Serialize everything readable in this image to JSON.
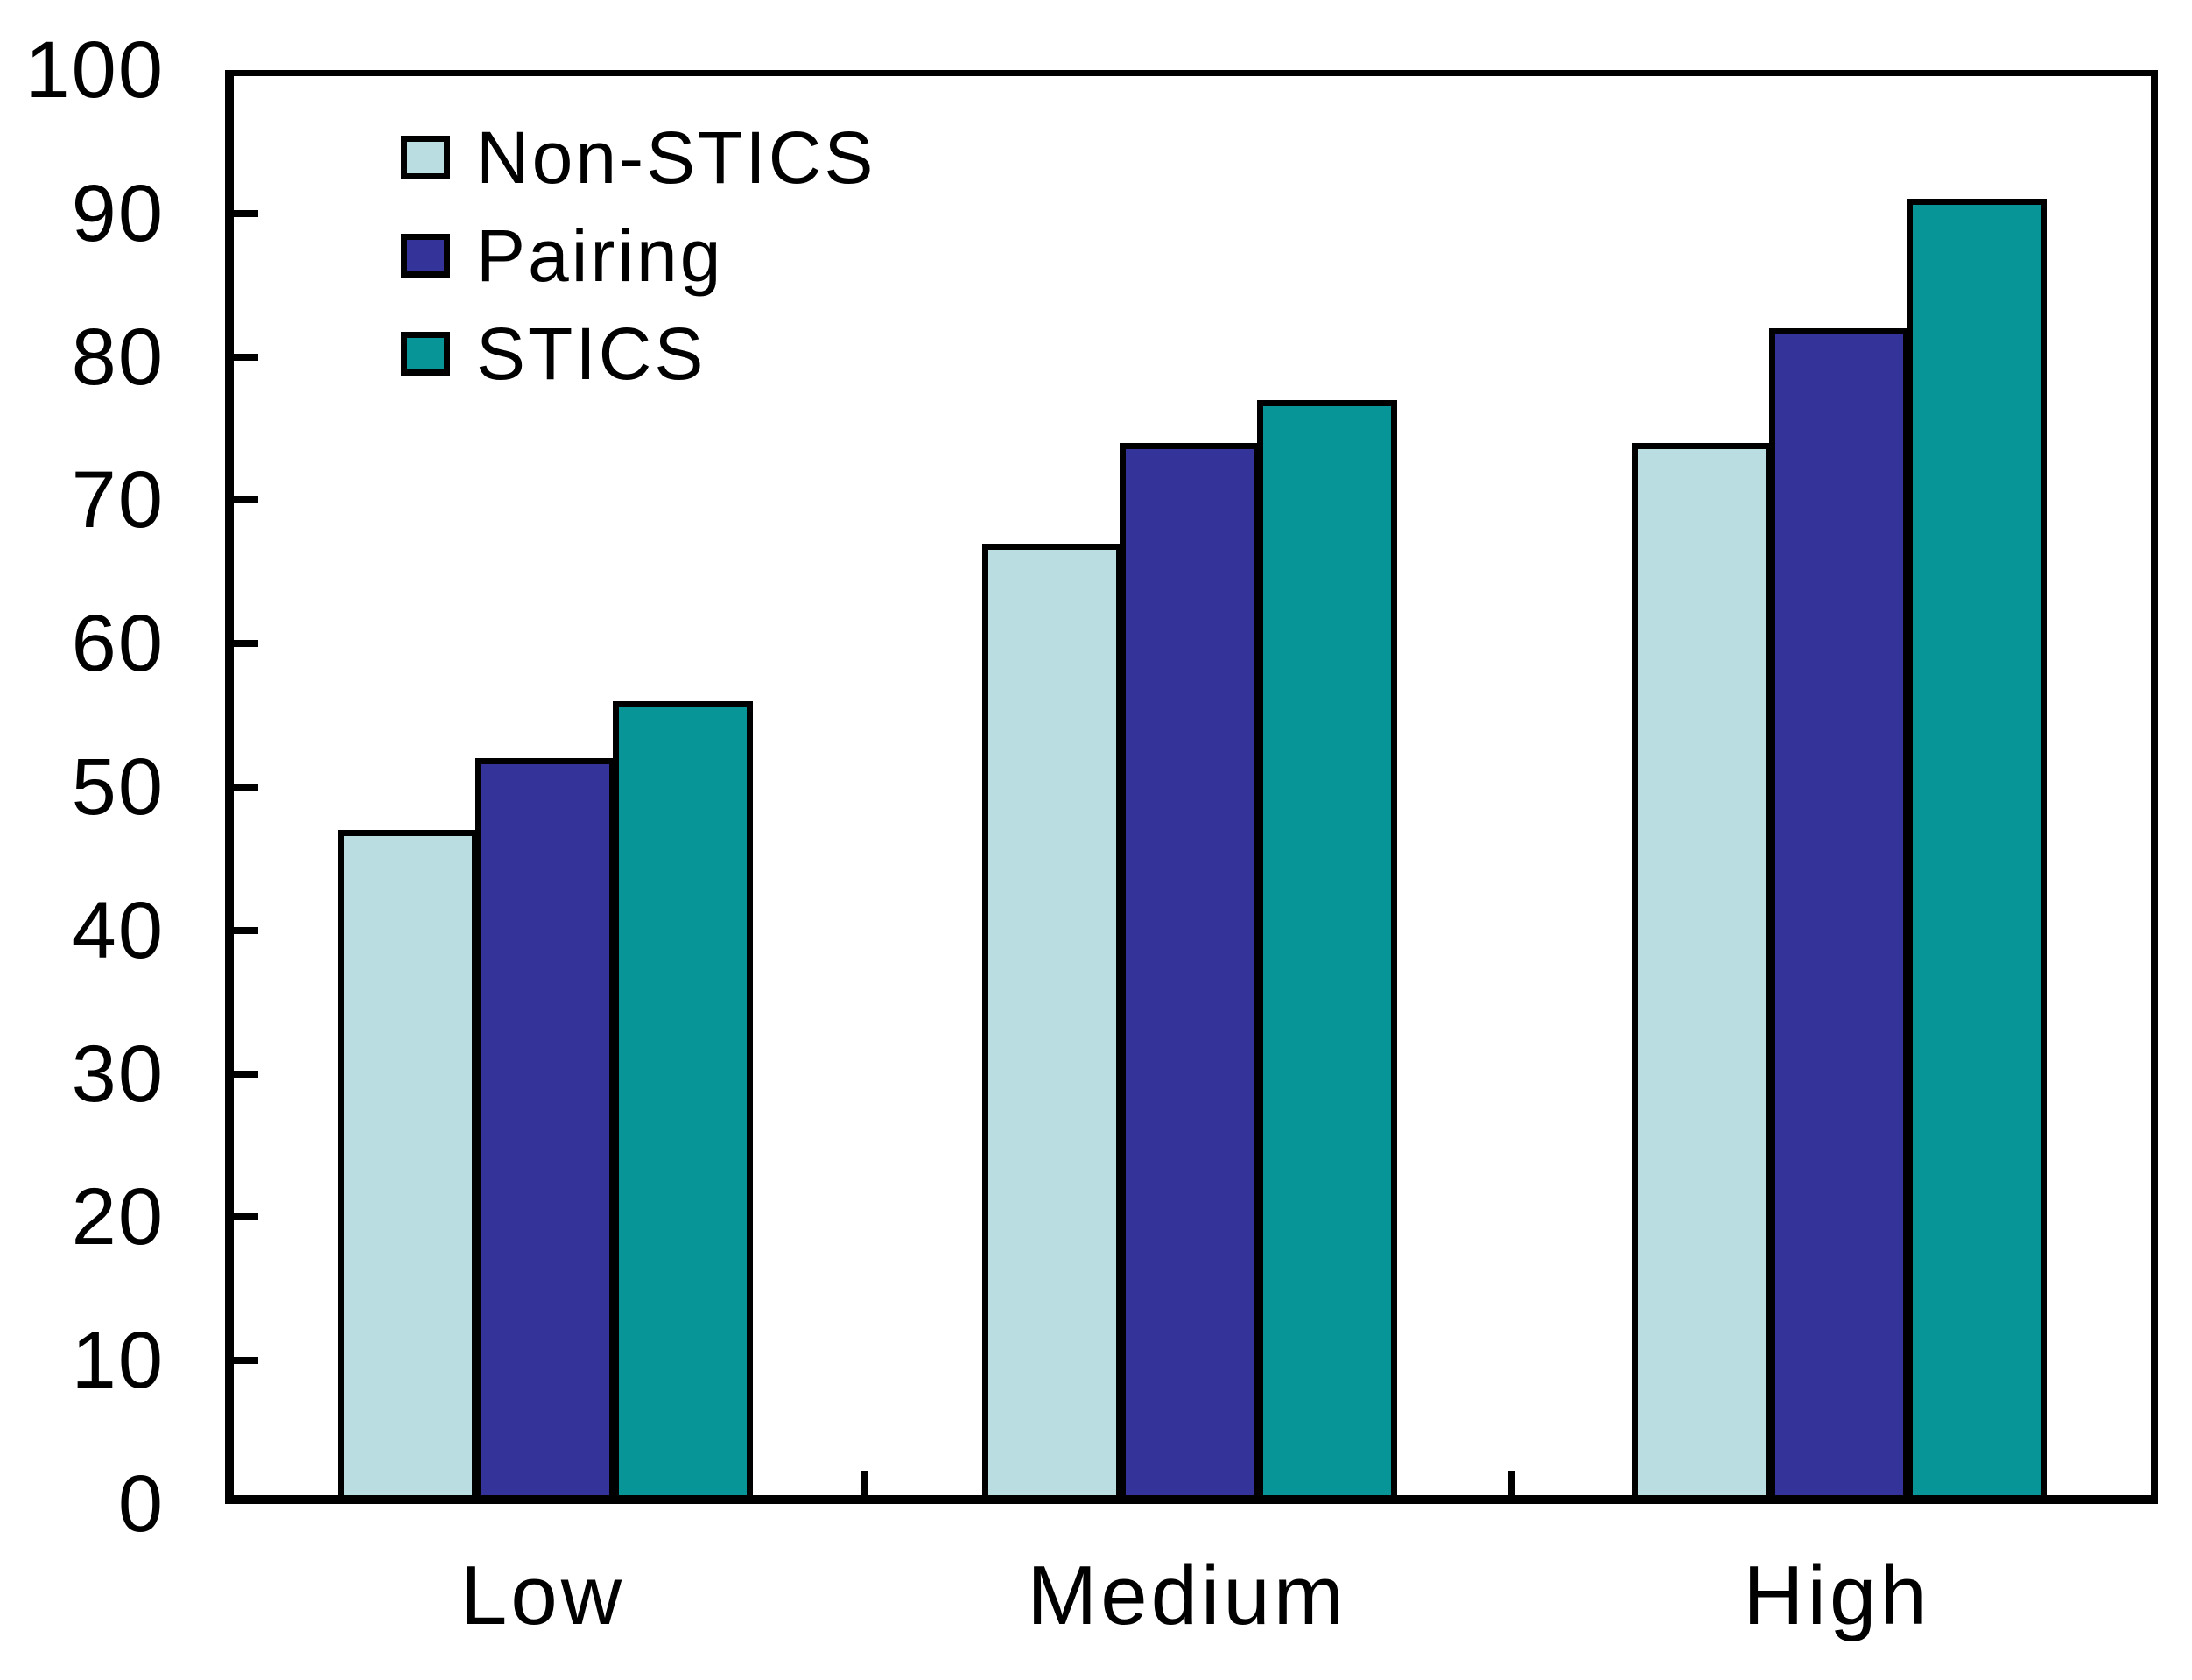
{
  "chart_data": {
    "type": "bar",
    "title": "",
    "xlabel": "",
    "ylabel": "",
    "categories": [
      "Low",
      "Medium",
      "High"
    ],
    "series": [
      {
        "name": "Non-STICS",
        "color": "#badde2",
        "values": [
          47,
          67,
          74
        ]
      },
      {
        "name": "Pairing",
        "color": "#333399",
        "values": [
          52,
          74,
          82
        ]
      },
      {
        "name": "STICS",
        "color": "#079597",
        "values": [
          56,
          77,
          91
        ]
      }
    ],
    "ylim": [
      0,
      100
    ],
    "yticks": [
      0,
      10,
      20,
      30,
      40,
      50,
      60,
      70,
      80,
      90,
      100
    ],
    "grid": false,
    "legend_position": "top-left",
    "axis_color": "#000000",
    "background_color": "#ffffff",
    "bar_outline_color": "#000000"
  }
}
